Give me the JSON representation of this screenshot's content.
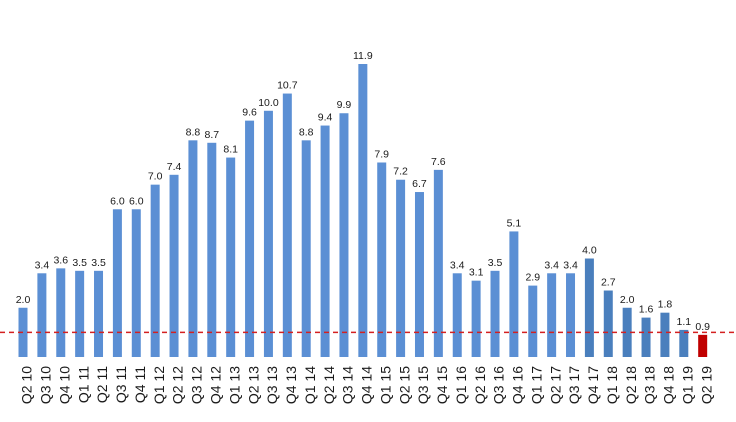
{
  "chart_data": {
    "type": "bar",
    "title": "",
    "xlabel": "",
    "ylabel": "",
    "ylim": [
      0,
      12.5
    ],
    "grid": false,
    "legend": "none",
    "categories": [
      "Q2 10",
      "Q3 10",
      "Q4 10",
      "Q1 11",
      "Q2 11",
      "Q3 11",
      "Q4 11",
      "Q1 12",
      "Q2 12",
      "Q3 12",
      "Q4 12",
      "Q1 13",
      "Q2 13",
      "Q3 13",
      "Q4 13",
      "Q1 14",
      "Q2 14",
      "Q3 14",
      "Q4 14",
      "Q1 15",
      "Q2 15",
      "Q3 15",
      "Q4 15",
      "Q1 16",
      "Q2 16",
      "Q3 16",
      "Q4 16",
      "Q1 17",
      "Q2 17",
      "Q3 17",
      "Q4 17",
      "Q1 18",
      "Q2 18",
      "Q3 18",
      "Q4 18",
      "Q1 19",
      "Q2 19"
    ],
    "values": [
      2.0,
      3.4,
      3.6,
      3.5,
      3.5,
      6.0,
      6.0,
      7.0,
      7.4,
      8.8,
      8.7,
      8.1,
      9.6,
      10.0,
      10.7,
      8.8,
      9.4,
      9.9,
      11.9,
      7.9,
      7.2,
      6.7,
      7.6,
      3.4,
      3.1,
      3.5,
      5.1,
      2.9,
      3.4,
      3.4,
      4.0,
      2.7,
      2.0,
      1.6,
      1.8,
      1.1,
      0.9
    ],
    "value_labels": [
      "2.0",
      "3.4",
      "3.6",
      "3.5",
      "3.5",
      "6.0",
      "6.0",
      "7.0",
      "7.4",
      "8.8",
      "8.7",
      "8.1",
      "9.6",
      "10.0",
      "10.7",
      "8.8",
      "9.4",
      "9.9",
      "11.9",
      "7.9",
      "7.2",
      "6.7",
      "7.6",
      "3.4",
      "3.1",
      "3.5",
      "5.1",
      "2.9",
      "3.4",
      "3.4",
      "4.0",
      "2.7",
      "2.0",
      "1.6",
      "1.8",
      "1.1",
      "0.9"
    ],
    "highlight_index": 36,
    "reference_line": {
      "value": 1.0,
      "style": "dashed"
    },
    "colors": {
      "bar": "#5b8fd4",
      "bar_late": "#4a7fbd",
      "highlight": "#c00000",
      "reference_line": "#d42020"
    }
  }
}
